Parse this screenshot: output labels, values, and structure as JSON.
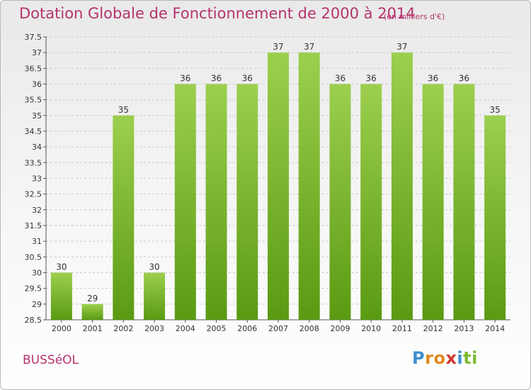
{
  "header": {
    "title": "Dotation Globale de Fonctionnement de 2000 à 2014",
    "subtitle": "(en milliers d'€)"
  },
  "footer": {
    "commune": "BUSSéOL",
    "logo_letters": [
      "P",
      "r",
      "o",
      "x",
      "i",
      "t",
      "i"
    ],
    "logo_colors": [
      "#3d8fd1",
      "#e08a1e",
      "#e08a1e",
      "#d3352e",
      "#3d8fd1",
      "#7bbb2f",
      "#7bbb2f"
    ]
  },
  "chart_data": {
    "type": "bar",
    "categories": [
      "2000",
      "2001",
      "2002",
      "2003",
      "2004",
      "2005",
      "2006",
      "2007",
      "2008",
      "2009",
      "2010",
      "2011",
      "2012",
      "2013",
      "2014"
    ],
    "values": [
      30,
      29,
      35,
      30,
      36,
      36,
      36,
      37,
      37,
      36,
      36,
      37,
      36,
      36,
      35
    ],
    "data_labels": [
      "30",
      "29",
      "35",
      "30",
      "36",
      "36",
      "36",
      "37",
      "37",
      "36",
      "36",
      "37",
      "36",
      "36",
      "35"
    ],
    "ylim": [
      28.5,
      37.5
    ],
    "yticks": [
      28.5,
      29,
      29.5,
      30,
      30.5,
      31,
      31.5,
      32,
      32.5,
      33,
      33.5,
      34,
      34.5,
      35,
      35.5,
      36,
      36.5,
      37,
      37.5
    ],
    "ytick_labels": [
      "28.5",
      "29",
      "29.5",
      "30",
      "30.5",
      "31",
      "31.5",
      "32",
      "32.5",
      "33",
      "33.5",
      "34",
      "34.5",
      "35",
      "35.5",
      "36",
      "36.5",
      "37",
      "37.5"
    ],
    "grid": "horizontal dashed",
    "bar_color_top": "#9ccf4e",
    "bar_color_bottom": "#5a9a12"
  }
}
